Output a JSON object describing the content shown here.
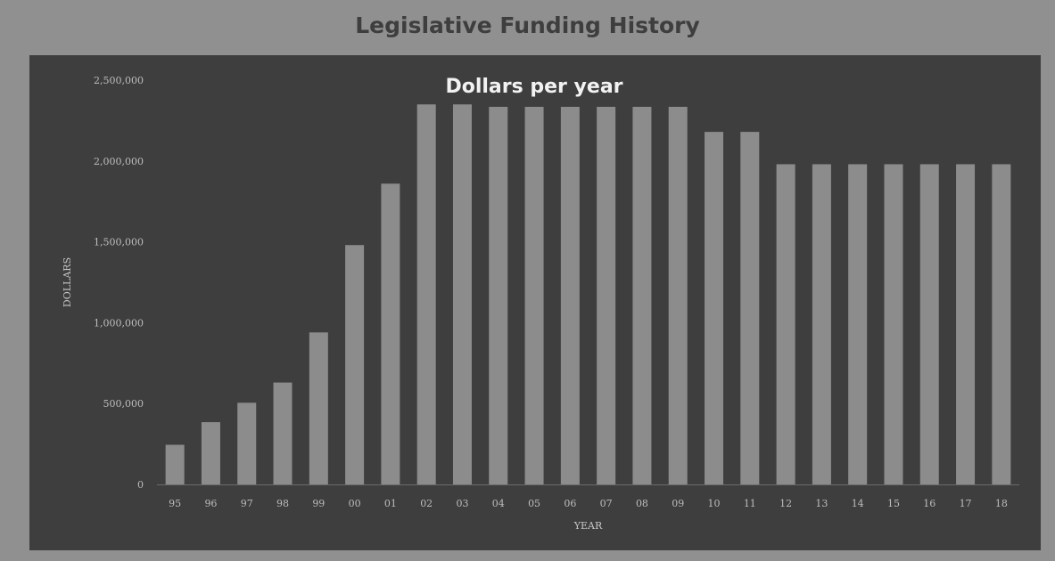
{
  "page": {
    "title": "Legislative Funding History"
  },
  "chart_data": {
    "type": "bar",
    "title": "Dollars per year",
    "xlabel": "YEAR",
    "ylabel": "DOLLARS",
    "ylim": [
      0,
      2500000
    ],
    "yticks": [
      0,
      500000,
      1000000,
      1500000,
      2000000,
      2500000
    ],
    "ytick_labels": [
      "0",
      "500,000",
      "1,000,000",
      "1,500,000",
      "2,000,000",
      "2,500,000"
    ],
    "grid": false,
    "legend": "none",
    "bar_color": "#8c8c8c",
    "background_color": "#3e3e3e",
    "categories": [
      "95",
      "96",
      "97",
      "98",
      "99",
      "00",
      "01",
      "02",
      "03",
      "04",
      "05",
      "06",
      "07",
      "08",
      "09",
      "10",
      "11",
      "12",
      "13",
      "14",
      "15",
      "16",
      "17",
      "18"
    ],
    "values": [
      245000,
      385000,
      505000,
      630000,
      940000,
      1480000,
      1860000,
      2350000,
      2350000,
      2335000,
      2335000,
      2335000,
      2335000,
      2335000,
      2335000,
      2180000,
      2180000,
      1980000,
      1980000,
      1980000,
      1980000,
      1980000,
      1980000,
      1980000
    ]
  }
}
